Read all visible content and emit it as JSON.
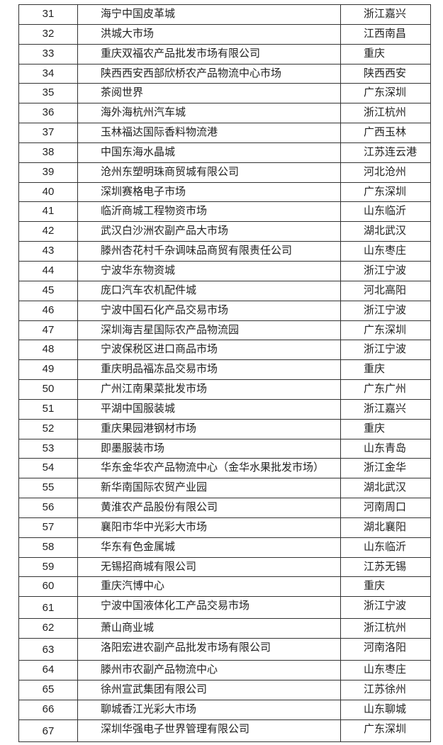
{
  "table": {
    "rows": [
      {
        "no": "31",
        "name": "海宁中国皮革城",
        "loc": "浙江嘉兴"
      },
      {
        "no": "32",
        "name": "洪城大市场",
        "loc": "江西南昌"
      },
      {
        "no": "33",
        "name": "重庆双福农产品批发市场有限公司",
        "loc": "重庆"
      },
      {
        "no": "34",
        "name": "陕西西安西部欣桥农产品物流中心市场",
        "loc": "陕西西安"
      },
      {
        "no": "35",
        "name": "茶阅世界",
        "loc": "广东深圳"
      },
      {
        "no": "36",
        "name": "海外海杭州汽车城",
        "loc": "浙江杭州"
      },
      {
        "no": "37",
        "name": "玉林福达国际香料物流港",
        "loc": "广西玉林"
      },
      {
        "no": "38",
        "name": "中国东海水晶城",
        "loc": "江苏连云港"
      },
      {
        "no": "39",
        "name": "沧州东塑明珠商贸城有限公司",
        "loc": "河北沧州"
      },
      {
        "no": "40",
        "name": "深圳赛格电子市场",
        "loc": "广东深圳"
      },
      {
        "no": "41",
        "name": "临沂商城工程物资市场",
        "loc": "山东临沂"
      },
      {
        "no": "42",
        "name": "武汉白沙洲农副产品大市场",
        "loc": "湖北武汉"
      },
      {
        "no": "43",
        "name": "滕州杏花村千杂调味品商贸有限责任公司",
        "loc": "山东枣庄"
      },
      {
        "no": "44",
        "name": "宁波华东物资城",
        "loc": "浙江宁波"
      },
      {
        "no": "45",
        "name": "庞口汽车农机配件城",
        "loc": "河北高阳"
      },
      {
        "no": "46",
        "name": "宁波中国石化产品交易市场",
        "loc": "浙江宁波"
      },
      {
        "no": "47",
        "name": "深圳海吉星国际农产品物流园",
        "loc": "广东深圳"
      },
      {
        "no": "48",
        "name": "宁波保税区进口商品市场",
        "loc": "浙江宁波"
      },
      {
        "no": "49",
        "name": "重庆明品福冻品交易市场",
        "loc": "重庆"
      },
      {
        "no": "50",
        "name": "广州江南果菜批发市场",
        "loc": "广东广州"
      },
      {
        "no": "51",
        "name": "平湖中国服装城",
        "loc": "浙江嘉兴"
      },
      {
        "no": "52",
        "name": "重庆果园港钢材市场",
        "loc": "重庆"
      },
      {
        "no": "53",
        "name": "即墨服装市场",
        "loc": "山东青岛"
      },
      {
        "no": "54",
        "name": "华东金华农产品物流中心（金华水果批发市场）",
        "loc": "浙江金华"
      },
      {
        "no": "55",
        "name": "新华南国际农贸产业园",
        "loc": "湖北武汉"
      },
      {
        "no": "56",
        "name": "黄淮农产品股份有限公司",
        "loc": "河南周口"
      },
      {
        "no": "57",
        "name": "襄阳市华中光彩大市场",
        "loc": "湖北襄阳"
      },
      {
        "no": "58",
        "name": "华东有色金属城",
        "loc": "山东临沂"
      },
      {
        "no": "59",
        "name": "无锡招商城有限公司",
        "loc": "江苏无锡"
      },
      {
        "no": "60",
        "name": "重庆汽博中心",
        "loc": "重庆"
      },
      {
        "no": "61",
        "name": "宁波中国液体化工产品交易市场",
        "loc": "浙江宁波"
      },
      {
        "no": "62",
        "name": "萧山商业城",
        "loc": "浙江杭州"
      },
      {
        "no": "63",
        "name": "洛阳宏进农副产品批发市场有限公司",
        "loc": "河南洛阳"
      },
      {
        "no": "64",
        "name": "滕州市农副产品物流中心",
        "loc": "山东枣庄"
      },
      {
        "no": "65",
        "name": "徐州宣武集团有限公司",
        "loc": "江苏徐州"
      },
      {
        "no": "66",
        "name": "聊城香江光彩大市场",
        "loc": "山东聊城"
      },
      {
        "no": "67",
        "name": "深圳华强电子世界管理有限公司",
        "loc": "广东深圳"
      }
    ]
  }
}
